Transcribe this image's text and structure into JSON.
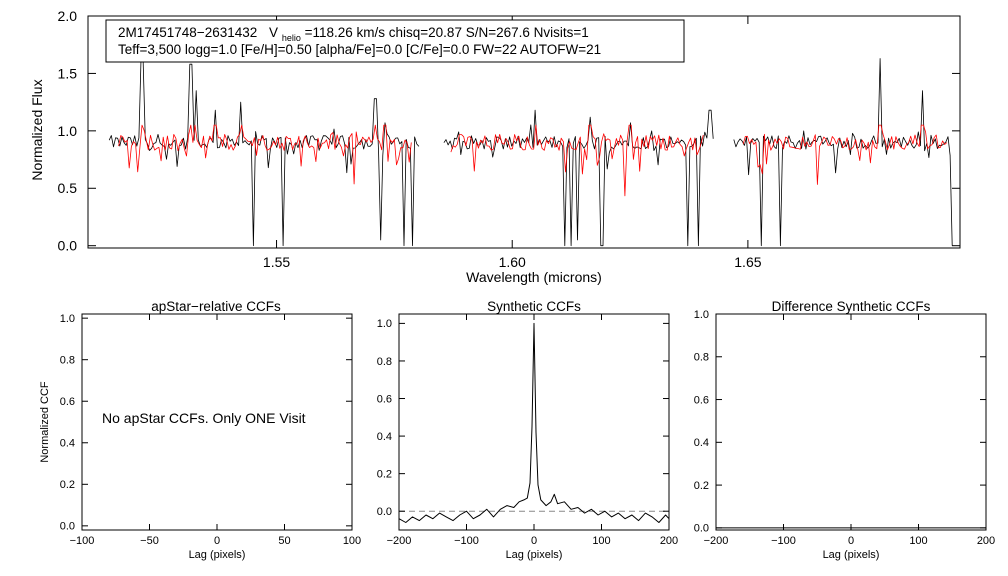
{
  "chart_data": [
    {
      "id": "spectrum",
      "type": "line",
      "xlabel": "Wavelength (microns)",
      "ylabel": "Normalized Flux",
      "xlim": [
        1.51,
        1.695
      ],
      "ylim": [
        -0.02,
        2.0
      ],
      "xticks": [
        1.55,
        1.6,
        1.65
      ],
      "xtick_labels": [
        "1.55",
        "1.60",
        "1.65"
      ],
      "yticks": [
        0.0,
        0.5,
        1.0,
        1.5,
        2.0
      ],
      "ytick_labels": [
        "0.0",
        "0.5",
        "1.0",
        "1.5",
        "2.0"
      ],
      "info_box": {
        "line1_star": "2M17451748−2631432",
        "line1_v": "V",
        "line1_sub": "helio",
        "line1_rest": "=118.26 km/s  chisq=20.87  S/N=267.6  Nvisits=1",
        "line2": "Teff=3,500 logg=1.0 [Fe/H]=0.50 [alpha/Fe]=0.0 [C/Fe]=0.0 FW=22 AUTOFW=21"
      },
      "chips": [
        {
          "start": 1.5145,
          "end": 1.5805
        },
        {
          "start": 1.5855,
          "end": 1.643
        },
        {
          "start": 1.647,
          "end": 1.6935
        }
      ],
      "model_chips": [
        {
          "start": 1.5165,
          "end": 1.579
        },
        {
          "start": 1.587,
          "end": 1.641
        },
        {
          "start": 1.649,
          "end": 1.6925
        }
      ],
      "series": [
        {
          "role": "observed",
          "color": "#000000",
          "continuum": 0.9,
          "noise": 0.06
        },
        {
          "role": "model",
          "color": "#ff0000",
          "continuum": 0.9,
          "noise": 0.07
        }
      ],
      "spikes": [
        {
          "x": 1.5215,
          "y": 1.62
        },
        {
          "x": 1.5318,
          "y": 1.58
        },
        {
          "x": 1.5328,
          "y": 1.35
        },
        {
          "x": 1.537,
          "y": 1.18
        },
        {
          "x": 1.5425,
          "y": 1.25
        },
        {
          "x": 1.571,
          "y": 1.28
        },
        {
          "x": 1.573,
          "y": 1.07
        },
        {
          "x": 1.605,
          "y": 1.18
        },
        {
          "x": 1.6165,
          "y": 1.12
        },
        {
          "x": 1.625,
          "y": 1.07
        },
        {
          "x": 1.642,
          "y": 1.18
        },
        {
          "x": 1.678,
          "y": 1.63
        },
        {
          "x": 1.687,
          "y": 1.35
        }
      ],
      "dips": [
        {
          "x": 1.5123,
          "y": 0.0
        },
        {
          "x": 1.5452,
          "y": 0.0
        },
        {
          "x": 1.5515,
          "y": 0.0
        },
        {
          "x": 1.572,
          "y": 0.05
        },
        {
          "x": 1.5772,
          "y": 0.0
        },
        {
          "x": 1.579,
          "y": 0.0
        },
        {
          "x": 1.6112,
          "y": 0.0
        },
        {
          "x": 1.6125,
          "y": 0.0
        },
        {
          "x": 1.614,
          "y": 0.05
        },
        {
          "x": 1.619,
          "y": 0.0
        },
        {
          "x": 1.6372,
          "y": 0.0
        },
        {
          "x": 1.6395,
          "y": 0.0
        },
        {
          "x": 1.653,
          "y": 0.0
        },
        {
          "x": 1.657,
          "y": 0.0
        },
        {
          "x": 1.6935,
          "y": 0.0
        }
      ]
    },
    {
      "id": "apstar_ccf",
      "type": "line",
      "title": "apStar−relative CCFs",
      "xlabel": "Lag (pixels)",
      "ylabel": "Normalized CCF",
      "xlim": [
        -100,
        100
      ],
      "ylim": [
        -0.02,
        1.02
      ],
      "xticks": [
        -100,
        -50,
        0,
        50,
        100
      ],
      "xtick_labels": [
        "−100",
        "−50",
        "0",
        "50",
        "100"
      ],
      "yticks": [
        0.0,
        0.2,
        0.4,
        0.6,
        0.8,
        1.0
      ],
      "ytick_labels": [
        "0.0",
        "0.2",
        "0.4",
        "0.6",
        "0.8",
        "1.0"
      ],
      "message": "No apStar CCFs.  Only ONE Visit"
    },
    {
      "id": "synthetic_ccf",
      "type": "line",
      "title": "Synthetic CCFs",
      "xlabel": "Lag (pixels)",
      "xlim": [
        -200,
        200
      ],
      "ylim": [
        -0.1,
        1.05
      ],
      "xticks": [
        -200,
        -100,
        0,
        100,
        200
      ],
      "xtick_labels": [
        "−200",
        "−100",
        "0",
        "100",
        "200"
      ],
      "yticks": [
        0.0,
        0.2,
        0.4,
        0.6,
        0.8,
        1.0
      ],
      "ytick_labels": [
        "0.0",
        "0.2",
        "0.4",
        "0.6",
        "0.8",
        "1.0"
      ],
      "reference_line_y": 0.0,
      "peak": {
        "x": 0,
        "y": 1.0
      },
      "points": [
        [
          -200,
          -0.04
        ],
        [
          -190,
          -0.06
        ],
        [
          -180,
          -0.03
        ],
        [
          -170,
          -0.05
        ],
        [
          -160,
          -0.02
        ],
        [
          -150,
          -0.04
        ],
        [
          -140,
          -0.01
        ],
        [
          -130,
          -0.03
        ],
        [
          -120,
          -0.05
        ],
        [
          -110,
          -0.02
        ],
        [
          -100,
          0.0
        ],
        [
          -90,
          -0.04
        ],
        [
          -80,
          -0.02
        ],
        [
          -70,
          0.01
        ],
        [
          -60,
          -0.03
        ],
        [
          -50,
          0.01
        ],
        [
          -40,
          0.03
        ],
        [
          -30,
          0.02
        ],
        [
          -22,
          0.05
        ],
        [
          -15,
          0.06
        ],
        [
          -10,
          0.07
        ],
        [
          -6,
          0.15
        ],
        [
          -3,
          0.45
        ],
        [
          0,
          1.0
        ],
        [
          3,
          0.42
        ],
        [
          6,
          0.14
        ],
        [
          10,
          0.06
        ],
        [
          18,
          0.03
        ],
        [
          25,
          0.05
        ],
        [
          30,
          0.09
        ],
        [
          35,
          0.04
        ],
        [
          45,
          0.05
        ],
        [
          55,
          0.01
        ],
        [
          65,
          0.02
        ],
        [
          75,
          -0.01
        ],
        [
          85,
          0.01
        ],
        [
          95,
          -0.02
        ],
        [
          105,
          0.0
        ],
        [
          115,
          -0.03
        ],
        [
          125,
          -0.01
        ],
        [
          135,
          -0.04
        ],
        [
          145,
          -0.02
        ],
        [
          155,
          -0.05
        ],
        [
          165,
          -0.01
        ],
        [
          175,
          -0.03
        ],
        [
          185,
          -0.06
        ],
        [
          195,
          -0.02
        ],
        [
          200,
          -0.04
        ]
      ]
    },
    {
      "id": "difference_ccf",
      "type": "line",
      "title": "Difference Synthetic CCFs",
      "xlabel": "Lag (pixels)",
      "xlim": [
        -200,
        200
      ],
      "ylim": [
        -0.01,
        1.0
      ],
      "xticks": [
        -200,
        -100,
        0,
        100,
        200
      ],
      "xtick_labels": [
        "−200",
        "−100",
        "0",
        "100",
        "200"
      ],
      "yticks": [
        0.0,
        0.2,
        0.4,
        0.6,
        0.8,
        1.0
      ],
      "ytick_labels": [
        "0.0",
        "0.2",
        "0.4",
        "0.6",
        "0.8",
        "1.0"
      ],
      "points": [
        [
          -200,
          0.0
        ],
        [
          200,
          0.0
        ]
      ]
    }
  ]
}
